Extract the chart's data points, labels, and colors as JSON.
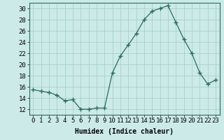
{
  "x": [
    0,
    1,
    2,
    3,
    4,
    5,
    6,
    7,
    8,
    9,
    10,
    11,
    12,
    13,
    14,
    15,
    16,
    17,
    18,
    19,
    20,
    21,
    22,
    23
  ],
  "y": [
    15.5,
    15.2,
    15.0,
    14.5,
    13.5,
    13.7,
    12.0,
    12.0,
    12.2,
    12.2,
    18.5,
    21.5,
    23.5,
    25.5,
    28.0,
    29.5,
    30.0,
    30.5,
    27.5,
    24.5,
    22.0,
    18.5,
    16.5,
    17.2
  ],
  "line_color": "#2a6b5e",
  "marker": "+",
  "marker_size": 4,
  "bg_color": "#cceae8",
  "grid_color": "#a0ccc8",
  "ylim": [
    11,
    31
  ],
  "xlim": [
    -0.5,
    23.5
  ],
  "yticks": [
    12,
    14,
    16,
    18,
    20,
    22,
    24,
    26,
    28,
    30
  ],
  "xticks": [
    0,
    1,
    2,
    3,
    4,
    5,
    6,
    7,
    8,
    9,
    10,
    11,
    12,
    13,
    14,
    15,
    16,
    17,
    18,
    19,
    20,
    21,
    22,
    23
  ],
  "xlabel": "Humidex (Indice chaleur)",
  "xlabel_fontsize": 7,
  "tick_fontsize": 6.5,
  "title": ""
}
